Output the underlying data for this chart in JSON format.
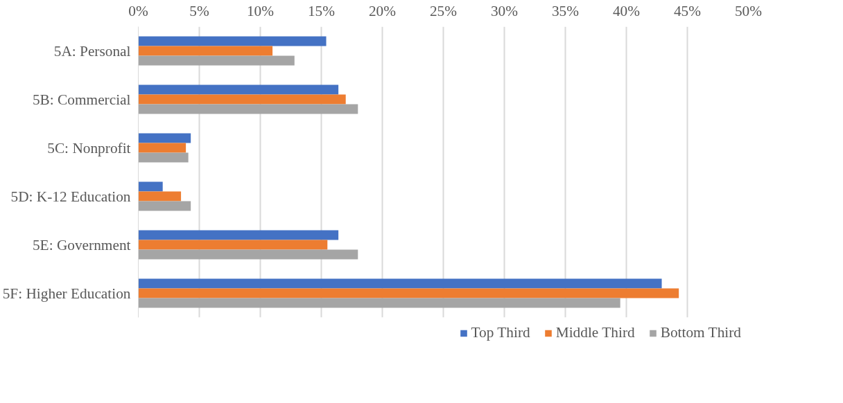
{
  "chart_data": {
    "type": "bar",
    "orientation": "horizontal",
    "categories": [
      "5A: Personal",
      "5B: Commercial",
      "5C: Nonprofit",
      "5D: K-12 Education",
      "5E: Government",
      "5F: Higher Education"
    ],
    "series": [
      {
        "name": "Top Third",
        "color": "#4472c4",
        "values": [
          15.4,
          16.4,
          4.3,
          2.0,
          16.4,
          42.9
        ]
      },
      {
        "name": "Middle Third",
        "color": "#ed7d31",
        "values": [
          11.0,
          17.0,
          3.9,
          3.5,
          15.5,
          44.3
        ]
      },
      {
        "name": "Bottom Third",
        "color": "#a5a5a5",
        "values": [
          12.8,
          18.0,
          4.1,
          4.3,
          18.0,
          39.5
        ]
      }
    ],
    "xlim": [
      0,
      50
    ],
    "xticks": [
      {
        "value": 0,
        "label": "0%"
      },
      {
        "value": 5,
        "label": "5%"
      },
      {
        "value": 10,
        "label": "10%"
      },
      {
        "value": 15,
        "label": "15%"
      },
      {
        "value": 20,
        "label": "20%"
      },
      {
        "value": 25,
        "label": "25%"
      },
      {
        "value": 30,
        "label": "30%"
      },
      {
        "value": 35,
        "label": "35%"
      },
      {
        "value": 40,
        "label": "40%"
      },
      {
        "value": 45,
        "label": "45%"
      },
      {
        "value": 50,
        "label": "50%"
      }
    ],
    "grid": "x",
    "legend": "bottom"
  }
}
